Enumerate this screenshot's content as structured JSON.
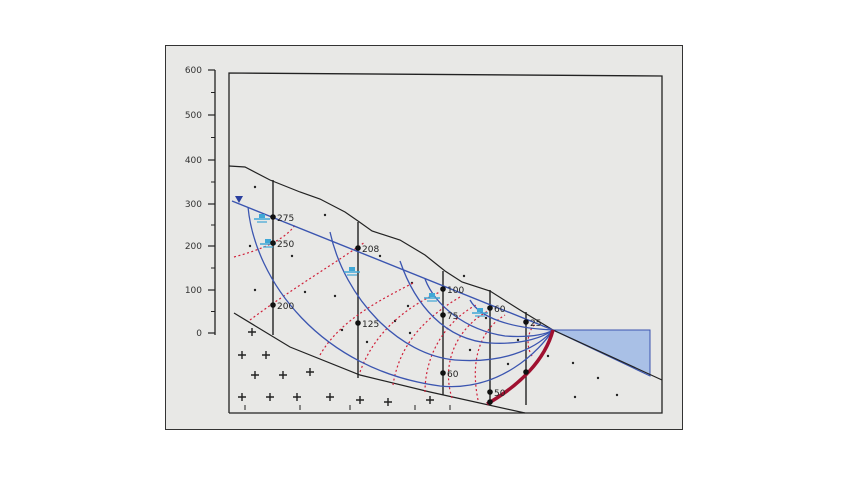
{
  "y_axis": {
    "ticks": [
      "600",
      "500",
      "400",
      "300",
      "200",
      "100",
      "0"
    ]
  },
  "well_labels": [
    "275",
    "250",
    "200",
    "208",
    "125",
    "100",
    "75",
    "60",
    "60",
    "50",
    "25"
  ],
  "colors": {
    "ink": "#222222",
    "flow_lines": "#3b55b0",
    "equipotentials": "#d0213a",
    "slip_surface": "#a01030",
    "water": "#9fb8e0",
    "water_marker": "#3fa7d6",
    "paper": "#e8e8e6"
  }
}
